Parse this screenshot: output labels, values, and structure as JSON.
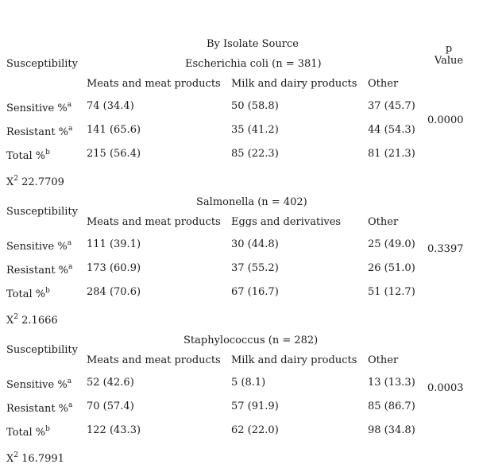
{
  "header": {
    "by_source": "By Isolate Source",
    "p_label": "p",
    "p_value_label": "Value"
  },
  "sections": [
    {
      "title": "Escherichia coli (n = 381)",
      "row_label": "Susceptibility",
      "columns": [
        "Meats and meat products",
        "Milk and dairy products",
        "Other"
      ],
      "rows": [
        {
          "label": "Sensitive %",
          "sup": "a",
          "values": [
            "74 (34.4)",
            "50 (58.8)",
            "37 (45.7)"
          ]
        },
        {
          "label": "Resistant %",
          "sup": "a",
          "values": [
            "141 (65.6)",
            "35 (41.2)",
            "44 (54.3)"
          ]
        },
        {
          "label": "Total %",
          "sup": "b",
          "values": [
            "215 (56.4)",
            "85 (22.3)",
            "81 (21.3)"
          ]
        }
      ],
      "p_value": "0.0000",
      "chi_symbol": "X",
      "chi_exp": "2",
      "chi_value": "22.7709"
    },
    {
      "title": "Salmonella (n = 402)",
      "row_label": "Susceptibility",
      "columns": [
        "Meats and meat products",
        "Eggs and derivatives",
        "Other"
      ],
      "rows": [
        {
          "label": "Sensitive %",
          "sup": "a",
          "values": [
            "111 (39.1)",
            "30 (44.8)",
            "25 (49.0)"
          ]
        },
        {
          "label": "Resistant %",
          "sup": "a",
          "values": [
            "173 (60.9)",
            "37 (55.2)",
            "26 (51.0)"
          ]
        },
        {
          "label": "Total %",
          "sup": "b",
          "values": [
            "284 (70.6)",
            "67 (16.7)",
            "51 (12.7)"
          ]
        }
      ],
      "p_value": "0.3397",
      "chi_symbol": "X",
      "chi_exp": "2",
      "chi_value": "2.1666"
    },
    {
      "title": "Staphylococcus (n = 282)",
      "row_label": "Susceptibility",
      "columns": [
        "Meats and meat products",
        "Milk and dairy products",
        "Other"
      ],
      "rows": [
        {
          "label": "Sensitive %",
          "sup": "a",
          "values": [
            "52 (42.6)",
            "5 (8.1)",
            "13 (13.3)"
          ]
        },
        {
          "label": "Resistant %",
          "sup": "a",
          "values": [
            "70 (57.4)",
            "57 (91.9)",
            "85 (86.7)"
          ]
        },
        {
          "label": "Total %",
          "sup": "b",
          "values": [
            "122 (43.3)",
            "62 (22.0)",
            "98 (34.8)"
          ]
        }
      ],
      "p_value": "0.0003",
      "chi_symbol": "X",
      "chi_exp": "2",
      "chi_value": "16.7991"
    }
  ]
}
